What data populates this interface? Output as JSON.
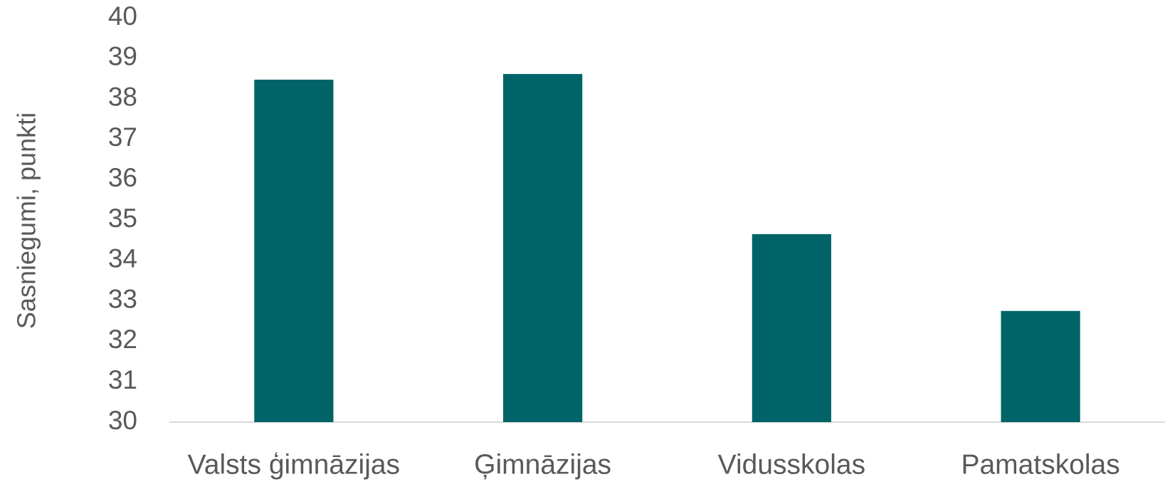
{
  "chart_data": {
    "type": "bar",
    "y_label": "Sasniegumi, punkti",
    "categories": [
      "Valsts ģimnāzijas",
      "Ģimnāzijas",
      "Vidusskolas",
      "Pamatskolas"
    ],
    "values": [
      38.47,
      38.61,
      34.65,
      32.75
    ],
    "color": "#006468",
    "ylim": [
      30,
      40
    ],
    "yticks": [
      30,
      31,
      32,
      33,
      34,
      35,
      36,
      37,
      38,
      39,
      40
    ],
    "grid": false
  }
}
